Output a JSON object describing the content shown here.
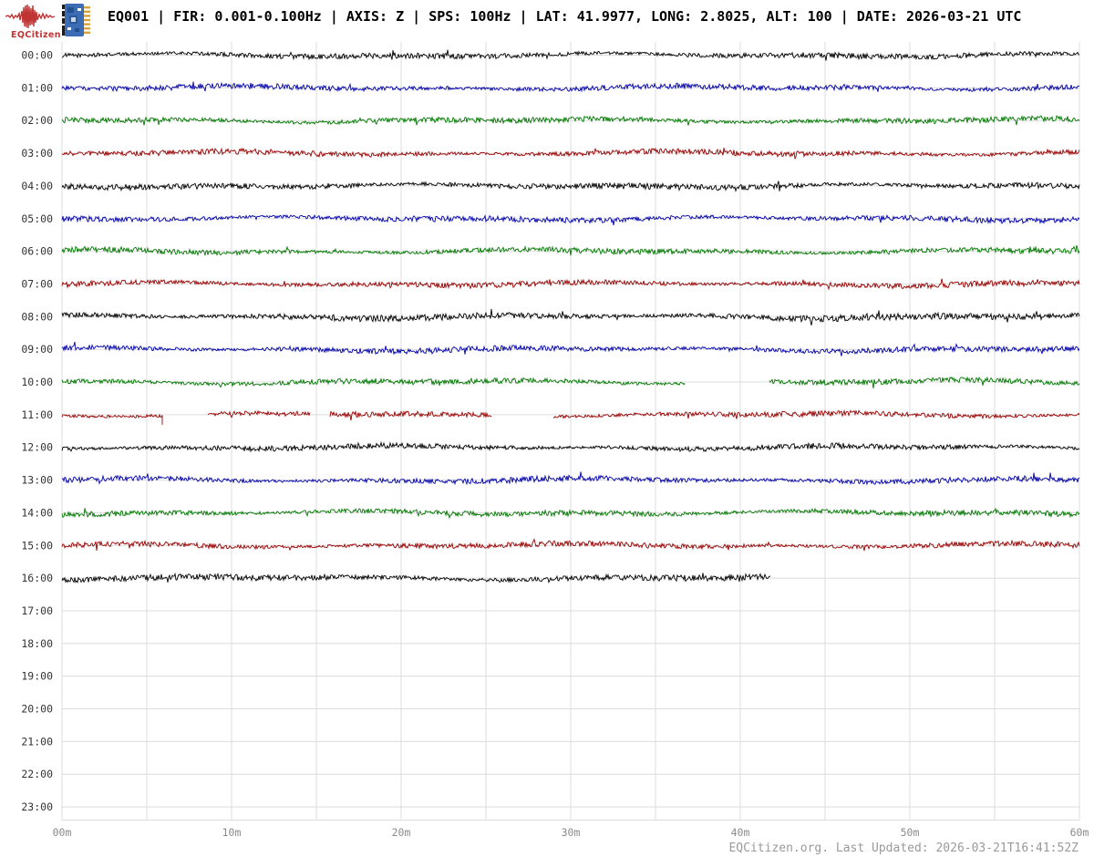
{
  "header": {
    "brand": {
      "name": "EQCitizen",
      "logo_color": "#c03434",
      "logo_icon": "seismic-waveform-icon",
      "device_icon": "pcb-sensor-icon"
    },
    "title": "EQ001 | FIR: 0.001-0.100Hz | AXIS: Z | SPS: 100Hz | LAT: 41.9977, LONG: 2.8025, ALT: 100 | DATE: 2026-03-21 UTC"
  },
  "footer": {
    "text": "EQCitizen.org. Last Updated: 2026-03-21T16:41:52Z"
  },
  "chart_data": {
    "type": "line",
    "variant": "helicorder-24h",
    "title": "",
    "xlabel": "",
    "ylabel": "",
    "x_axis": {
      "tick_labels": [
        "00m",
        "10m",
        "20m",
        "30m",
        "40m",
        "50m",
        "60m"
      ],
      "range_minutes": [
        0,
        60
      ],
      "gridline_every_minutes": 5
    },
    "grid_on": true,
    "grid_color": "#dcdcdc",
    "axis_label_color": "#8a8a8a",
    "hour_label_color": "#333333",
    "trace_color_cycle": [
      "#000000",
      "#0000aa",
      "#007700",
      "#990000"
    ],
    "content_note": "continuous ambient seismic noise traces, one row per hour; segments list [start,end] minutes with data present",
    "rows": [
      {
        "hour": "00:00",
        "color": "#000000",
        "segments": [
          [
            0,
            60
          ]
        ],
        "amp": 1.0
      },
      {
        "hour": "01:00",
        "color": "#0000aa",
        "segments": [
          [
            0,
            60
          ]
        ],
        "amp": 1.0
      },
      {
        "hour": "02:00",
        "color": "#007700",
        "segments": [
          [
            0,
            60
          ]
        ],
        "amp": 1.0
      },
      {
        "hour": "03:00",
        "color": "#990000",
        "segments": [
          [
            0,
            60
          ]
        ],
        "amp": 1.0
      },
      {
        "hour": "04:00",
        "color": "#000000",
        "segments": [
          [
            0,
            60
          ]
        ],
        "amp": 1.05
      },
      {
        "hour": "05:00",
        "color": "#0000aa",
        "segments": [
          [
            0,
            60
          ]
        ],
        "amp": 1.0
      },
      {
        "hour": "06:00",
        "color": "#007700",
        "segments": [
          [
            0,
            60
          ]
        ],
        "amp": 1.0
      },
      {
        "hour": "07:00",
        "color": "#990000",
        "segments": [
          [
            0,
            60
          ]
        ],
        "amp": 1.0
      },
      {
        "hour": "08:00",
        "color": "#000000",
        "segments": [
          [
            0,
            60
          ]
        ],
        "amp": 1.15
      },
      {
        "hour": "09:00",
        "color": "#0000aa",
        "segments": [
          [
            0,
            60
          ]
        ],
        "amp": 1.0
      },
      {
        "hour": "10:00",
        "color": "#007700",
        "segments": [
          [
            0,
            36.7
          ],
          [
            41.7,
            60
          ]
        ],
        "amp": 1.0
      },
      {
        "hour": "11:00",
        "color": "#990000",
        "segments": [
          [
            0,
            5.9
          ],
          [
            8.6,
            14.6
          ],
          [
            15.8,
            25.3
          ],
          [
            29,
            60
          ]
        ],
        "amp": 0.95
      },
      {
        "hour": "12:00",
        "color": "#000000",
        "segments": [
          [
            0,
            60
          ]
        ],
        "amp": 1.0
      },
      {
        "hour": "13:00",
        "color": "#0000aa",
        "segments": [
          [
            0,
            60
          ]
        ],
        "amp": 1.0
      },
      {
        "hour": "14:00",
        "color": "#007700",
        "segments": [
          [
            0,
            60
          ]
        ],
        "amp": 1.0
      },
      {
        "hour": "15:00",
        "color": "#990000",
        "segments": [
          [
            0,
            60
          ]
        ],
        "amp": 1.0
      },
      {
        "hour": "16:00",
        "color": "#000000",
        "segments": [
          [
            0,
            41.8
          ]
        ],
        "amp": 1.1
      },
      {
        "hour": "17:00",
        "color": null,
        "segments": [],
        "amp": 0
      },
      {
        "hour": "18:00",
        "color": null,
        "segments": [],
        "amp": 0
      },
      {
        "hour": "19:00",
        "color": null,
        "segments": [],
        "amp": 0
      },
      {
        "hour": "20:00",
        "color": null,
        "segments": [],
        "amp": 0
      },
      {
        "hour": "21:00",
        "color": null,
        "segments": [],
        "amp": 0
      },
      {
        "hour": "22:00",
        "color": null,
        "segments": [],
        "amp": 0
      },
      {
        "hour": "23:00",
        "color": null,
        "segments": [],
        "amp": 0
      }
    ]
  }
}
